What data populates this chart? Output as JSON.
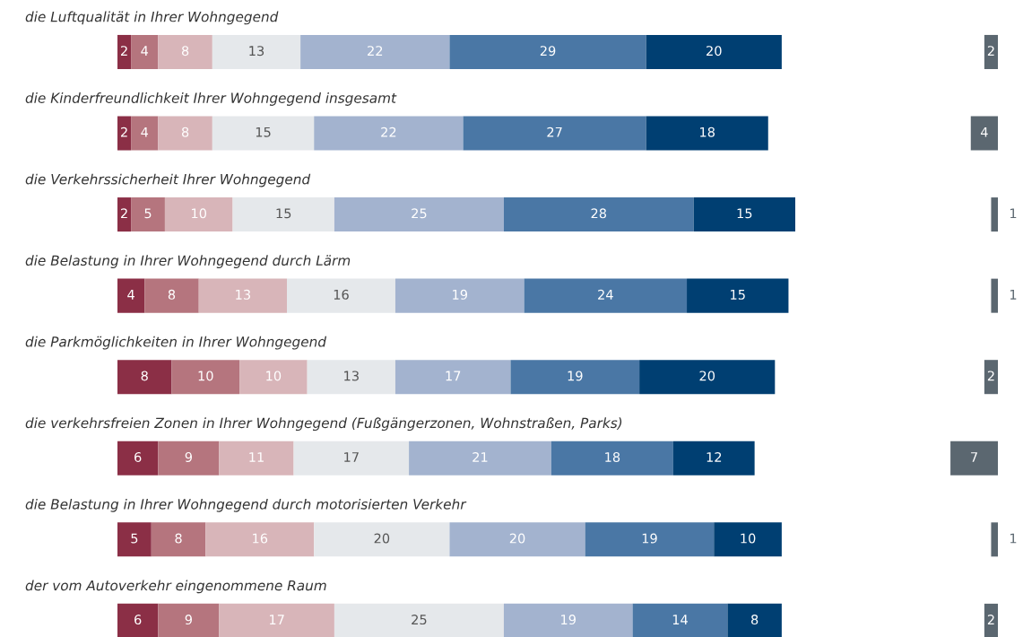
{
  "chart_data": [
    {
      "type": "bar",
      "orientation": "horizontal",
      "stacked": true,
      "data_labels": true,
      "categories": [
        "die Luftqualität in Ihrer Wohngegend",
        "die Kinderfreundlichkeit Ihrer Wohngegend insgesamt",
        "die Verkehrssicherheit Ihrer Wohngegend",
        "die Belastung in Ihrer Wohngegend durch Lärm",
        "die Parkmöglichkeiten in Ihrer Wohngegend",
        "die verkehrsfreien Zonen in Ihrer Wohngegend (Fußgängerzonen, Wohnstraßen, Parks)",
        "die Belastung in Ihrer Wohngegend durch motorisierten Verkehr",
        "der vom Autoverkehr eingenommene Raum"
      ],
      "series": [
        {
          "color": "#8b2f46",
          "values": [
            2,
            2,
            2,
            4,
            8,
            6,
            5,
            6
          ]
        },
        {
          "color": "#b5757e",
          "values": [
            4,
            4,
            5,
            8,
            10,
            9,
            8,
            9
          ]
        },
        {
          "color": "#d8b5b9",
          "values": [
            8,
            8,
            10,
            13,
            10,
            11,
            16,
            17
          ]
        },
        {
          "color": "#e5e8eb",
          "values": [
            13,
            15,
            15,
            16,
            13,
            17,
            20,
            25
          ]
        },
        {
          "color": "#a3b3cf",
          "values": [
            22,
            22,
            25,
            19,
            17,
            21,
            20,
            19
          ]
        },
        {
          "color": "#4a77a5",
          "values": [
            29,
            27,
            28,
            24,
            19,
            18,
            19,
            14
          ]
        },
        {
          "color": "#003f72",
          "values": [
            20,
            18,
            15,
            15,
            20,
            12,
            10,
            8
          ]
        }
      ]
    },
    {
      "type": "bar",
      "orientation": "horizontal",
      "data_labels": true,
      "categories": [
        null,
        null,
        null,
        null,
        null,
        null,
        null,
        null
      ],
      "series": [
        {
          "color": "#5b6770",
          "values": [
            2,
            4,
            1,
            1,
            2,
            7,
            1,
            2
          ]
        }
      ]
    }
  ]
}
